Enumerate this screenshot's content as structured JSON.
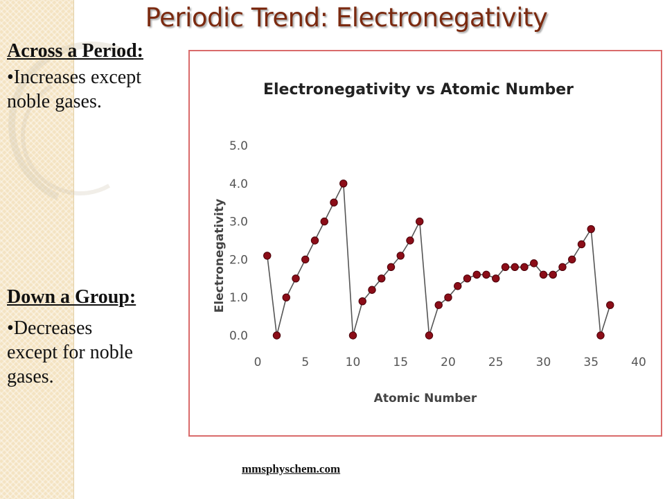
{
  "slide": {
    "title": "Periodic Trend:  Electronegativity",
    "across": {
      "heading": "Across a Period:",
      "bullet_lines": [
        "•Increases except",
        "noble gases."
      ]
    },
    "down": {
      "heading": "Down a Group:",
      "bullet_lines": [
        "•Decreases",
        "except for noble",
        "gases."
      ]
    },
    "credit": "mmsphyschem.com"
  },
  "colors": {
    "title": "#7b2a10",
    "frame_border": "#d96a6a",
    "marker": "#8b0d18",
    "line": "#555555",
    "side_strip": "#f4e3c2"
  },
  "chart_data": {
    "type": "line",
    "title": "Electronegativity vs Atomic Number",
    "xlabel": "Atomic Number",
    "ylabel": "Electronegativity",
    "xlim": [
      0,
      40
    ],
    "ylim": [
      0,
      5
    ],
    "xticks": [
      0,
      5,
      10,
      15,
      20,
      25,
      30,
      35,
      40
    ],
    "yticks": [
      "0.0",
      "1.0",
      "2.0",
      "3.0",
      "4.0",
      "5.0"
    ],
    "legend": "none",
    "series": [
      {
        "x": [
          1,
          2,
          3,
          4,
          5,
          6,
          7,
          8,
          9,
          10,
          11,
          12,
          13,
          14,
          15,
          16,
          17,
          18,
          19,
          20,
          21,
          22,
          23,
          24,
          25,
          26,
          27,
          28,
          29,
          30,
          31,
          32,
          33,
          34,
          35,
          36,
          37
        ],
        "y": [
          2.1,
          0,
          1.0,
          1.5,
          2.0,
          2.5,
          3.0,
          3.5,
          4.0,
          0,
          0.9,
          1.2,
          1.5,
          1.8,
          2.1,
          2.5,
          3.0,
          0,
          0.8,
          1.0,
          1.3,
          1.5,
          1.6,
          1.6,
          1.5,
          1.8,
          1.8,
          1.8,
          1.9,
          1.6,
          1.6,
          1.8,
          2.0,
          2.4,
          2.8,
          0,
          0.8
        ]
      }
    ]
  }
}
